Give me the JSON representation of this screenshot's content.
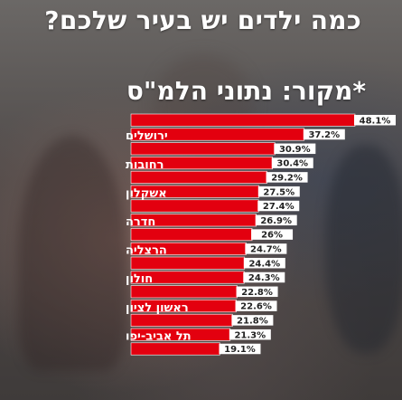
{
  "headline": "כמה ילדים יש בעיר שלכם?",
  "source_note": "*מקור: נתוני הלמ\"ס",
  "colors": {
    "bar": "#e3000f",
    "bar_edge": "#ffffff",
    "value_box": "#ffffff",
    "value_text": "#222222",
    "label_text": "#ffffff"
  },
  "chart_data": {
    "type": "bar",
    "orientation": "horizontal",
    "categories": [
      "",
      "ירושלים",
      "",
      "רחובות",
      "",
      "אשקלון",
      "",
      "חדרה",
      "",
      "הרצליה",
      "",
      "חולון",
      "",
      "ראשון לציון",
      "",
      "תל אביב-יפו",
      ""
    ],
    "values": [
      48.1,
      37.2,
      30.9,
      30.4,
      29.2,
      27.5,
      27.4,
      26.9,
      26,
      24.7,
      24.4,
      24.3,
      22.8,
      22.6,
      21.8,
      21.3,
      19.1
    ],
    "value_labels": [
      "48.1%",
      "37.2%",
      "30.9%",
      "30.4%",
      "29.2%",
      "27.5%",
      "27.4%",
      "26.9%",
      "26%",
      "24.7%",
      "24.4%",
      "24.3%",
      "22.8%",
      "22.6%",
      "21.8%",
      "21.3%",
      "19.1%"
    ],
    "title": "",
    "xlabel": "",
    "ylabel": "",
    "legend": "none",
    "grid": false
  }
}
